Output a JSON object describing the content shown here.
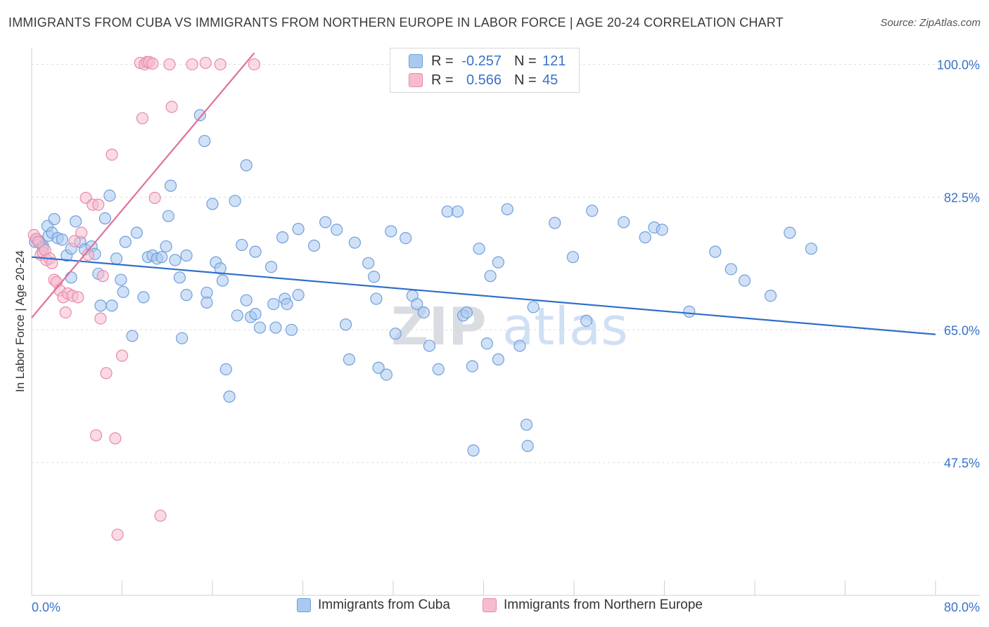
{
  "header": {
    "title": "IMMIGRANTS FROM CUBA VS IMMIGRANTS FROM NORTHERN EUROPE IN LABOR FORCE | AGE 20-24 CORRELATION CHART",
    "source": "Source: ZipAtlas.com"
  },
  "watermark": {
    "zip": "ZIP",
    "atlas": "atlas"
  },
  "stats": {
    "r_label": "R =",
    "n_label": "N =",
    "rows": [
      {
        "r": "-0.257",
        "n": "121",
        "color": "#a9c9f0",
        "border": "#6f9fdc"
      },
      {
        "r": "0.566",
        "n": "45",
        "color": "#f6bccd",
        "border": "#e88aa8"
      }
    ]
  },
  "legend": {
    "items": [
      {
        "label": "Immigrants from Cuba",
        "color": "#a9c9f0",
        "border": "#6f9fdc"
      },
      {
        "label": "Immigrants from Northern Europe",
        "color": "#f6bccd",
        "border": "#e88aa8"
      }
    ]
  },
  "chart_data": {
    "type": "scatter",
    "title": "IMMIGRANTS FROM CUBA VS IMMIGRANTS FROM NORTHERN EUROPE IN LABOR FORCE | AGE 20-24 CORRELATION CHART",
    "xlabel": "",
    "ylabel": "In Labor Force | Age 20-24",
    "xlim": [
      0,
      80
    ],
    "ylim": [
      30,
      102
    ],
    "x_tick_labels": [
      {
        "value": 0,
        "label": "0.0%"
      },
      {
        "value": 80,
        "label": "80.0%"
      }
    ],
    "y_tick_labels": [
      {
        "value": 100,
        "label": "100.0%"
      },
      {
        "value": 82.5,
        "label": "82.5%"
      },
      {
        "value": 65,
        "label": "65.0%"
      },
      {
        "value": 47.5,
        "label": "47.5%"
      }
    ],
    "grid": true,
    "legend_position": "bottom",
    "series": [
      {
        "name": "Immigrants from Cuba",
        "color": "#6f9fdc",
        "fill": "#a9c9f0",
        "trend": {
          "x": [
            0,
            80
          ],
          "y": [
            74.6,
            64.4
          ],
          "color": "#2f6fcb"
        },
        "points": [
          [
            0.3,
            76.6
          ],
          [
            0.5,
            76.9
          ],
          [
            0.7,
            76.6
          ],
          [
            1.0,
            76.1
          ],
          [
            1.0,
            75.8
          ],
          [
            1.5,
            77.4
          ],
          [
            1.4,
            78.7
          ],
          [
            1.8,
            77.8
          ],
          [
            2.0,
            79.6
          ],
          [
            2.3,
            77.1
          ],
          [
            2.7,
            76.9
          ],
          [
            3.1,
            74.8
          ],
          [
            3.5,
            75.7
          ],
          [
            3.9,
            79.3
          ],
          [
            3.5,
            71.9
          ],
          [
            4.3,
            76.6
          ],
          [
            4.7,
            75.6
          ],
          [
            5.3,
            76.0
          ],
          [
            5.6,
            75.0
          ],
          [
            5.9,
            72.4
          ],
          [
            6.1,
            68.2
          ],
          [
            6.5,
            79.7
          ],
          [
            6.9,
            82.7
          ],
          [
            7.1,
            68.2
          ],
          [
            7.5,
            74.4
          ],
          [
            7.9,
            71.6
          ],
          [
            8.1,
            70.0
          ],
          [
            8.3,
            76.6
          ],
          [
            8.9,
            64.2
          ],
          [
            9.3,
            77.8
          ],
          [
            9.9,
            69.3
          ],
          [
            10.3,
            74.6
          ],
          [
            10.7,
            74.8
          ],
          [
            11.1,
            74.4
          ],
          [
            11.5,
            74.6
          ],
          [
            11.9,
            76.0
          ],
          [
            12.1,
            80.0
          ],
          [
            12.3,
            84.0
          ],
          [
            12.7,
            74.2
          ],
          [
            13.1,
            71.9
          ],
          [
            13.3,
            63.9
          ],
          [
            13.7,
            74.8
          ],
          [
            13.7,
            69.6
          ],
          [
            14.9,
            93.3
          ],
          [
            15.3,
            89.9
          ],
          [
            15.5,
            69.9
          ],
          [
            15.5,
            68.6
          ],
          [
            16.0,
            81.6
          ],
          [
            16.3,
            73.9
          ],
          [
            16.7,
            73.1
          ],
          [
            16.9,
            71.5
          ],
          [
            17.2,
            59.8
          ],
          [
            17.5,
            56.2
          ],
          [
            18.0,
            82.0
          ],
          [
            18.2,
            66.9
          ],
          [
            18.6,
            76.2
          ],
          [
            19.0,
            68.9
          ],
          [
            19.0,
            86.7
          ],
          [
            19.4,
            66.7
          ],
          [
            19.8,
            75.3
          ],
          [
            19.8,
            67.1
          ],
          [
            20.2,
            65.3
          ],
          [
            21.2,
            73.3
          ],
          [
            21.4,
            68.4
          ],
          [
            21.6,
            65.3
          ],
          [
            22.2,
            77.2
          ],
          [
            22.4,
            69.1
          ],
          [
            22.6,
            68.4
          ],
          [
            23.0,
            65.0
          ],
          [
            23.6,
            78.3
          ],
          [
            23.6,
            69.6
          ],
          [
            25.0,
            76.1
          ],
          [
            26.0,
            79.2
          ],
          [
            27.0,
            78.2
          ],
          [
            27.8,
            65.7
          ],
          [
            28.1,
            61.1
          ],
          [
            28.6,
            76.5
          ],
          [
            29.8,
            73.8
          ],
          [
            30.3,
            72.0
          ],
          [
            30.5,
            69.1
          ],
          [
            30.7,
            60.0
          ],
          [
            31.4,
            59.1
          ],
          [
            31.8,
            78.0
          ],
          [
            32.2,
            64.5
          ],
          [
            33.1,
            77.1
          ],
          [
            33.7,
            69.5
          ],
          [
            34.1,
            68.4
          ],
          [
            34.7,
            67.3
          ],
          [
            35.2,
            62.9
          ],
          [
            36.0,
            59.8
          ],
          [
            36.8,
            80.6
          ],
          [
            37.7,
            80.6
          ],
          [
            38.2,
            66.9
          ],
          [
            38.5,
            67.3
          ],
          [
            39.0,
            60.2
          ],
          [
            39.1,
            49.1
          ],
          [
            39.6,
            75.7
          ],
          [
            40.3,
            63.2
          ],
          [
            40.6,
            72.1
          ],
          [
            41.3,
            61.1
          ],
          [
            41.3,
            73.9
          ],
          [
            42.1,
            80.9
          ],
          [
            43.2,
            62.9
          ],
          [
            43.8,
            52.5
          ],
          [
            43.9,
            49.7
          ],
          [
            44.4,
            68.0
          ],
          [
            46.3,
            79.1
          ],
          [
            47.9,
            74.6
          ],
          [
            49.1,
            66.2
          ],
          [
            49.6,
            80.7
          ],
          [
            52.4,
            79.2
          ],
          [
            54.3,
            77.2
          ],
          [
            55.1,
            78.5
          ],
          [
            55.8,
            78.2
          ],
          [
            58.2,
            67.4
          ],
          [
            60.5,
            75.3
          ],
          [
            61.9,
            73.0
          ],
          [
            63.1,
            71.5
          ],
          [
            65.4,
            69.5
          ],
          [
            67.1,
            77.8
          ],
          [
            69.0,
            75.7
          ]
        ]
      },
      {
        "name": "Immigrants from Northern Europe",
        "color": "#e88aa8",
        "fill": "#f6bccd",
        "trend": {
          "x": [
            0,
            19.7
          ],
          "y": [
            66.6,
            101.5
          ],
          "color": "#e0709a"
        },
        "points": [
          [
            0.2,
            77.5
          ],
          [
            0.4,
            77.0
          ],
          [
            0.6,
            76.6
          ],
          [
            0.8,
            74.9
          ],
          [
            1.0,
            75.2
          ],
          [
            1.2,
            75.5
          ],
          [
            1.3,
            74.2
          ],
          [
            1.6,
            74.4
          ],
          [
            1.8,
            73.8
          ],
          [
            2.0,
            71.6
          ],
          [
            2.2,
            71.3
          ],
          [
            2.5,
            70.2
          ],
          [
            2.8,
            69.3
          ],
          [
            3.0,
            67.3
          ],
          [
            3.2,
            69.8
          ],
          [
            3.6,
            69.5
          ],
          [
            3.8,
            76.7
          ],
          [
            4.1,
            69.3
          ],
          [
            4.4,
            77.8
          ],
          [
            4.8,
            82.4
          ],
          [
            5.0,
            74.9
          ],
          [
            5.4,
            81.5
          ],
          [
            5.7,
            51.1
          ],
          [
            5.9,
            81.5
          ],
          [
            6.1,
            66.5
          ],
          [
            6.3,
            72.1
          ],
          [
            6.6,
            59.3
          ],
          [
            7.1,
            88.1
          ],
          [
            7.4,
            50.7
          ],
          [
            7.6,
            38.0
          ],
          [
            8.0,
            61.6
          ],
          [
            9.6,
            100.2
          ],
          [
            9.8,
            92.9
          ],
          [
            10.0,
            100.0
          ],
          [
            10.2,
            100.3
          ],
          [
            10.4,
            100.3
          ],
          [
            10.7,
            100.1
          ],
          [
            10.9,
            82.4
          ],
          [
            11.4,
            40.5
          ],
          [
            12.2,
            100.0
          ],
          [
            12.4,
            94.4
          ],
          [
            14.2,
            100.0
          ],
          [
            15.4,
            100.2
          ],
          [
            16.7,
            100.0
          ],
          [
            19.7,
            100.0
          ]
        ]
      }
    ]
  }
}
